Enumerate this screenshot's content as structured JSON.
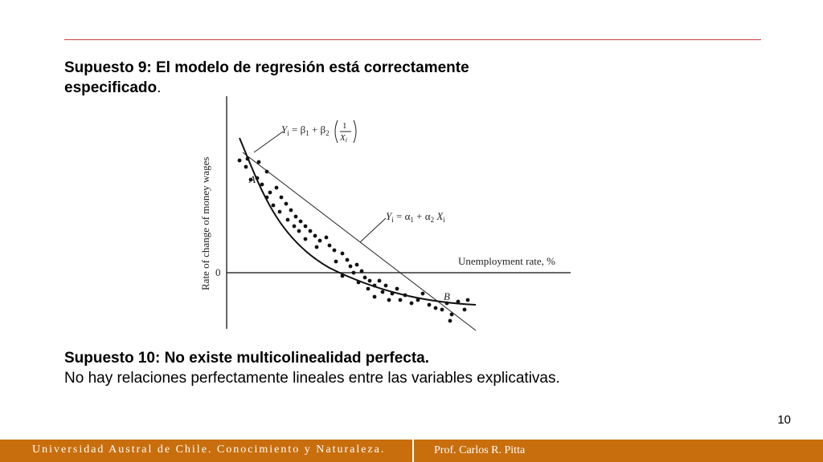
{
  "slide": {
    "heading_bold": "Supuesto 9: El modelo de regresión está correctamente especificado",
    "heading_tail": ".",
    "assumption10_title": "Supuesto 10: No existe multicolinealidad perfecta.",
    "assumption10_text": "No hay relaciones perfectamente lineales entre las variables explicativas.",
    "page_number": "10"
  },
  "footer": {
    "left": "Universidad Austral de Chile. Conocimiento y Naturaleza.",
    "right": "Prof. Carlos R. Pitta",
    "color": "#c86e0d"
  },
  "figure": {
    "y_axis_label": "Rate of  change of money wages",
    "x_axis_label": "Unemployment rate, %",
    "zero_label": "0",
    "point_a": "A",
    "point_b": "B",
    "curve_eq": {
      "prefix": "Y",
      "sub": "i",
      "body": " = β",
      "b1": "1",
      "plus": " + β",
      "b2": "2",
      "num": "1",
      "den": "X",
      "den_sub": "i"
    },
    "line_eq": {
      "prefix": "Y",
      "sub": "i",
      "body": " = α",
      "a1": "1",
      "plus": " + α",
      "a2": "2",
      "x": " X",
      "x_sub": "i"
    }
  }
}
